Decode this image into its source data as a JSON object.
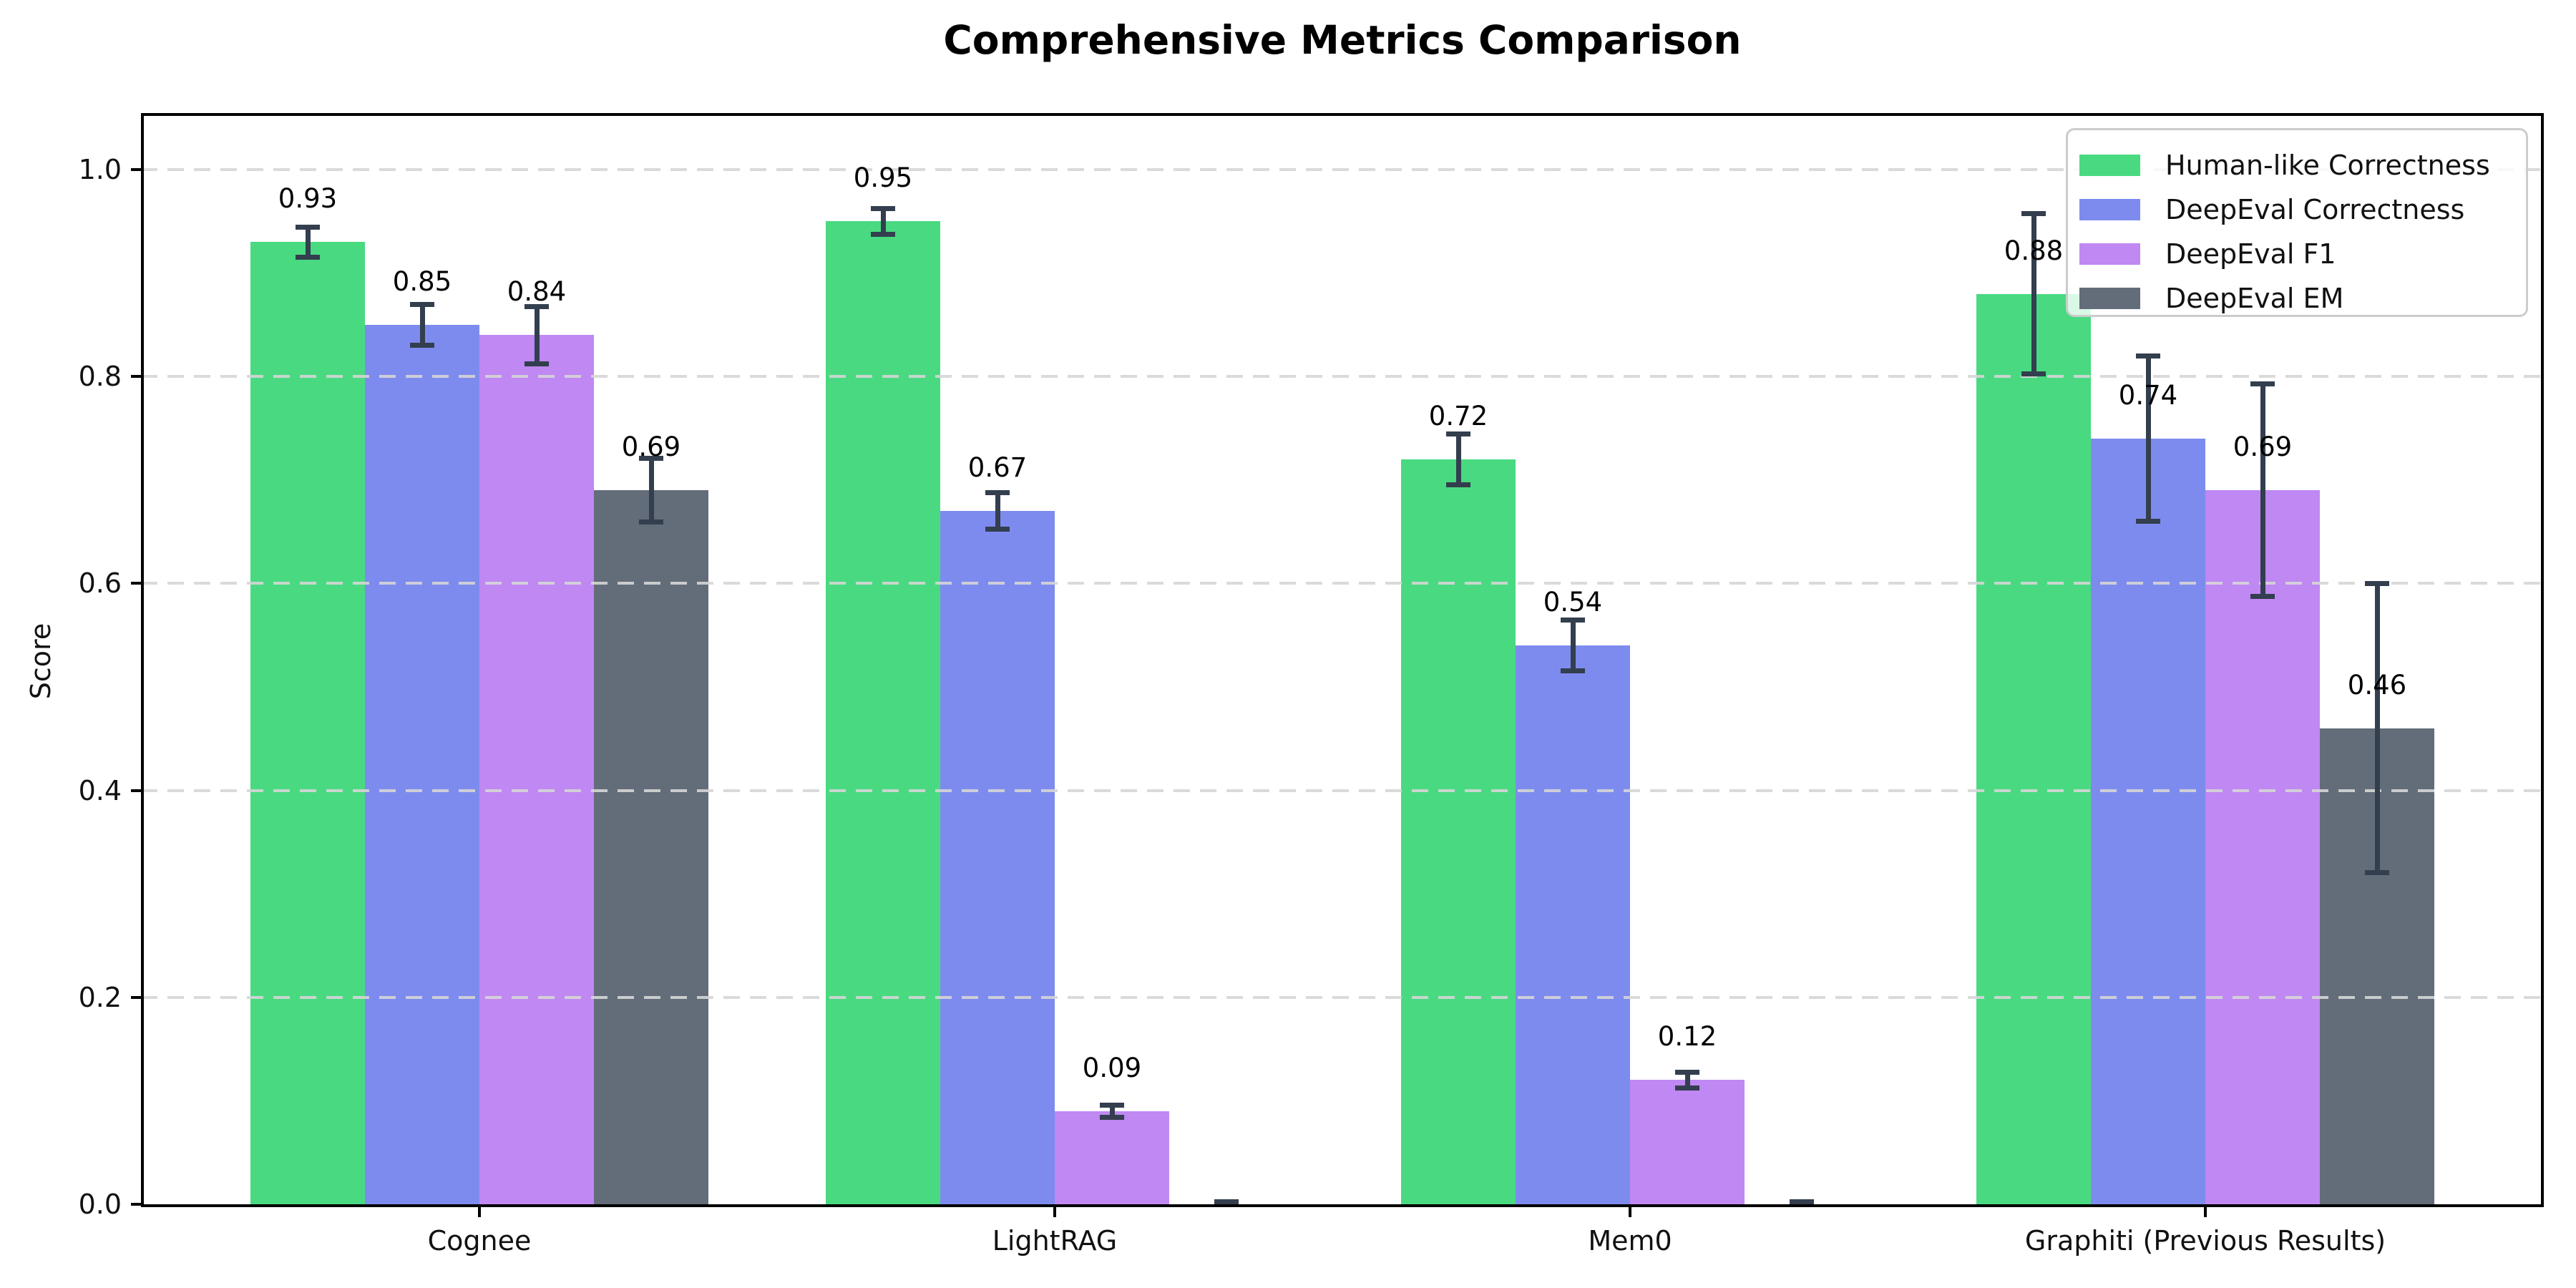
{
  "chart_data": {
    "type": "bar",
    "title": "Comprehensive Metrics Comparison",
    "ylabel": "Score",
    "xlabel": "",
    "categories": [
      "Cognee",
      "LightRAG",
      "Mem0",
      "Graphiti (Previous Results)"
    ],
    "series": [
      {
        "name": "Human-like Correctness",
        "color": "#49da81",
        "values": [
          0.93,
          0.95,
          0.72,
          0.88
        ],
        "errors": [
          0.015,
          0.013,
          0.025,
          0.078
        ],
        "labels": [
          "0.93",
          "0.95",
          "0.72",
          "0.88"
        ]
      },
      {
        "name": "DeepEval Correctness",
        "color": "#7e8bee",
        "values": [
          0.85,
          0.67,
          0.54,
          0.74
        ],
        "errors": [
          0.02,
          0.018,
          0.025,
          0.08
        ],
        "labels": [
          "0.85",
          "0.67",
          "0.54",
          "0.74"
        ]
      },
      {
        "name": "DeepEval F1",
        "color": "#bf88f2",
        "values": [
          0.84,
          0.09,
          0.12,
          0.69
        ],
        "errors": [
          0.028,
          0.006,
          0.008,
          0.103
        ],
        "labels": [
          "0.84",
          "0.09",
          "0.12",
          "0.69"
        ]
      },
      {
        "name": "DeepEval EM",
        "color": "#636c79",
        "values": [
          0.69,
          0.0,
          0.0,
          0.46
        ],
        "errors": [
          0.031,
          0.003,
          0.003,
          0.14
        ],
        "labels": [
          "0.69",
          null,
          null,
          "0.46"
        ]
      }
    ],
    "yticks": [
      {
        "label": "0.0",
        "value": 0.0
      },
      {
        "label": "0.2",
        "value": 0.2
      },
      {
        "label": "0.4",
        "value": 0.4
      },
      {
        "label": "0.6",
        "value": 0.6
      },
      {
        "label": "0.8",
        "value": 0.8
      },
      {
        "label": "1.0",
        "value": 1.0
      }
    ],
    "ylim": [
      0.0,
      1.055
    ],
    "grid": "horizontal-dashed",
    "legend_position": "upper-right",
    "colors": {
      "error_bar": "#333e4e",
      "grid": "#d6d6d6",
      "axis": "#000000",
      "text": "#111111",
      "background": "#ffffff"
    }
  }
}
